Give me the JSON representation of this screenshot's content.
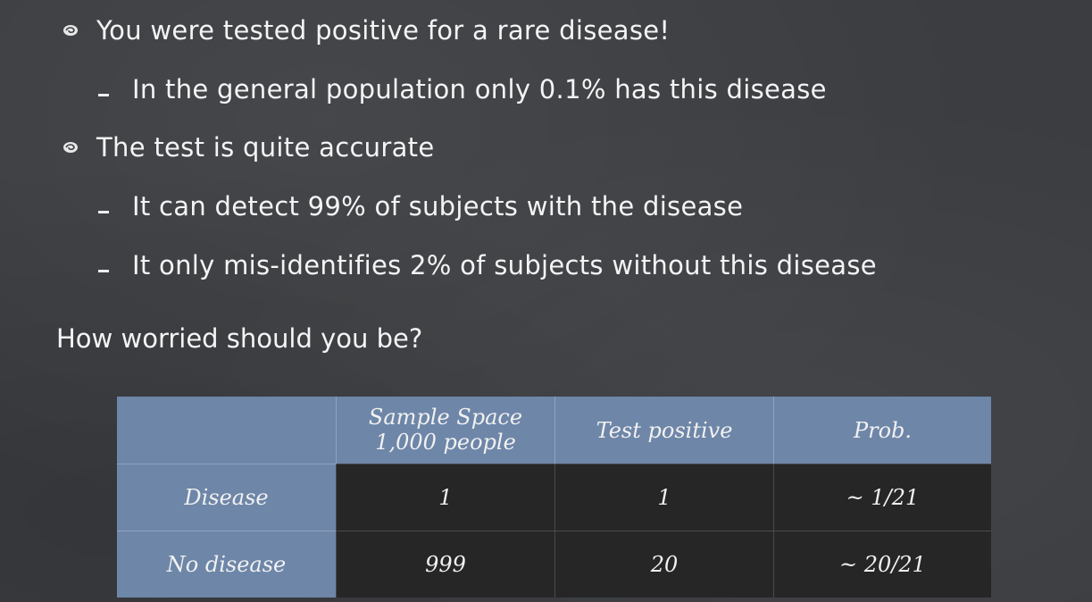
{
  "bullets": [
    {
      "level": 1,
      "text": "You were tested positive for a rare disease!"
    },
    {
      "level": 2,
      "text": "In the general population only 0.1% has this disease"
    },
    {
      "level": 1,
      "text": "The test is quite accurate"
    },
    {
      "level": 2,
      "text": "It can detect 99% of subjects with the disease"
    },
    {
      "level": 2,
      "text": "It only mis-identifies 2% of subjects without this disease"
    }
  ],
  "question": "How worried should you be?",
  "table": {
    "headers": [
      "",
      "Sample Space\n1,000 people",
      "Test positive",
      "Prob."
    ],
    "header_line1": "Sample Space",
    "header_line2": "1,000 people",
    "rows": [
      {
        "label": "Disease",
        "sample": "1",
        "positive": "1",
        "prob": "~ 1/21"
      },
      {
        "label": "No disease",
        "sample": "999",
        "positive": "20",
        "prob": "~ 20/21"
      }
    ]
  },
  "colors": {
    "background": "#3b3d41",
    "table_header": "#6e86a8",
    "table_body": "#262626",
    "text": "#f4f4f4"
  },
  "icons": {
    "level1_bullet": "swirl-bullet-icon",
    "level2_bullet": "dash"
  }
}
